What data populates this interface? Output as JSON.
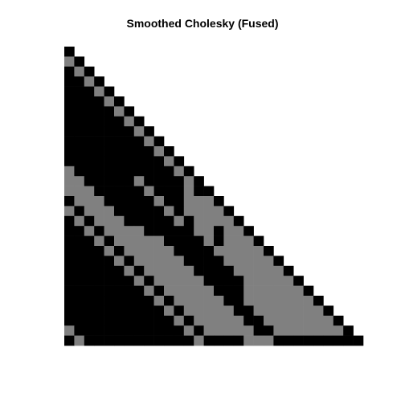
{
  "chart_data": {
    "type": "heatmap",
    "title": "Smoothed Cholesky (Fused)",
    "xlabel": "",
    "ylabel": "",
    "legend": "none",
    "n": 30,
    "triangle": "lower",
    "color_map": {
      "0": "#000000",
      "1": "#808080"
    },
    "rows": [
      "0",
      "10",
      "010",
      "0010",
      "00010",
      "000010",
      "0000010",
      "00000010",
      "000000010",
      "0000000010",
      "00000000010",
      "000000000010",
      "1000000000010",
      "11000001000010",
      "111000001000100",
      "0111000001001110",
      "10111000001011110",
      "010111000001011110",
      "0010111100000110110",
      "00010111110000101110",
      "000010111110000111110",
      "0000010111110000111110",
      "00000010111110000111110",
      "000000010111110000111110",
      "0000000010111110001111110",
      "00000000010111110011111110",
      "000000000010111110011111110",
      "0000000000010111110011111110",
      "10000000000010111110011111110",
      "010000000000010000111000000000"
    ]
  }
}
